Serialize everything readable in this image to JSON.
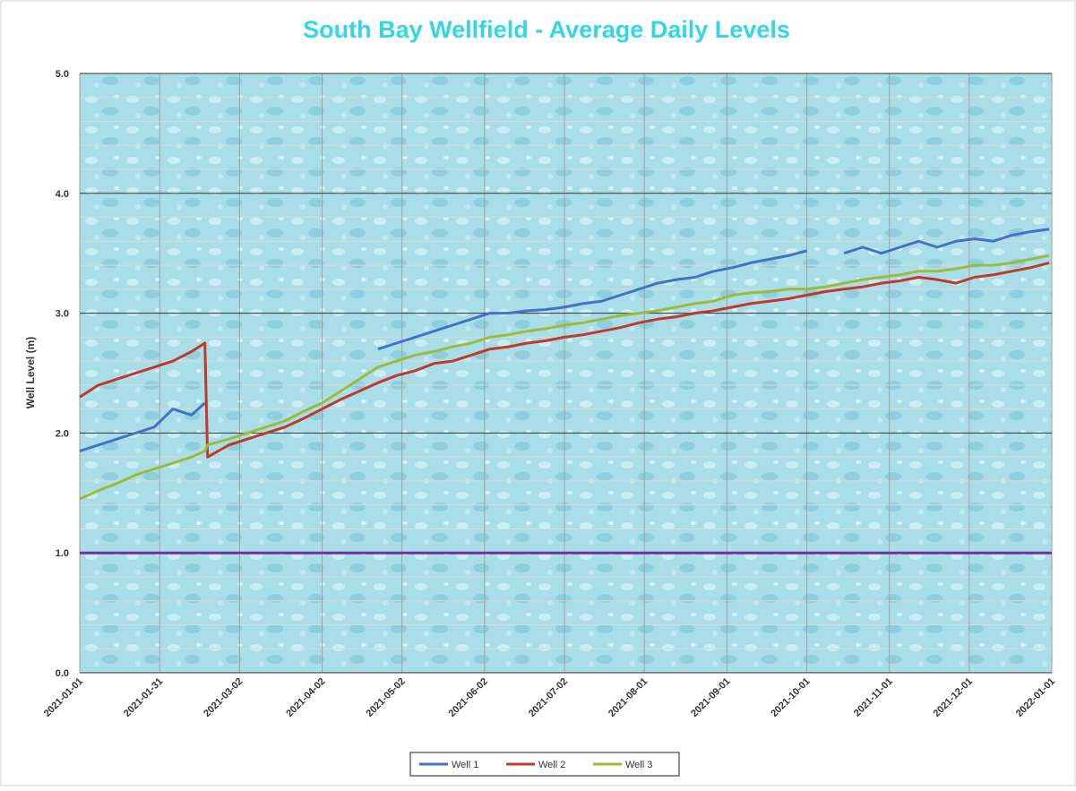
{
  "chart_data": {
    "type": "line",
    "title": "South Bay Wellfield - Average Daily Levels",
    "y_label": "Well Level (m)",
    "x": [
      "2021-01-01",
      "2021-01-08",
      "2021-01-15",
      "2021-01-22",
      "2021-01-29",
      "2021-02-05",
      "2021-02-12",
      "2021-02-17",
      "2021-02-18",
      "2021-02-26",
      "2021-03-05",
      "2021-03-12",
      "2021-03-19",
      "2021-03-26",
      "2021-04-02",
      "2021-04-09",
      "2021-04-16",
      "2021-04-23",
      "2021-04-30",
      "2021-05-07",
      "2021-05-14",
      "2021-05-21",
      "2021-05-28",
      "2021-06-04",
      "2021-06-11",
      "2021-06-18",
      "2021-06-25",
      "2021-07-02",
      "2021-07-09",
      "2021-07-16",
      "2021-07-23",
      "2021-07-30",
      "2021-08-06",
      "2021-08-13",
      "2021-08-20",
      "2021-08-27",
      "2021-09-03",
      "2021-09-10",
      "2021-09-17",
      "2021-09-24",
      "2021-10-01",
      "2021-10-08",
      "2021-10-15",
      "2021-10-22",
      "2021-10-29",
      "2021-11-05",
      "2021-11-12",
      "2021-11-19",
      "2021-11-26",
      "2021-12-03",
      "2021-12-10",
      "2021-12-17",
      "2021-12-24",
      "2021-12-31"
    ],
    "series": [
      {
        "name": "Well 1",
        "color": "#4472c4",
        "values": [
          1.85,
          1.9,
          1.95,
          2.0,
          2.05,
          2.2,
          2.15,
          2.25,
          null,
          null,
          null,
          null,
          null,
          null,
          null,
          null,
          null,
          2.7,
          2.75,
          2.8,
          2.85,
          2.9,
          2.95,
          3.0,
          3.0,
          3.02,
          3.03,
          3.05,
          3.08,
          3.1,
          3.15,
          3.2,
          3.25,
          3.28,
          3.3,
          3.35,
          3.38,
          3.42,
          3.45,
          3.48,
          3.52,
          null,
          3.5,
          3.55,
          3.5,
          3.55,
          3.6,
          3.55,
          3.6,
          3.62,
          3.6,
          3.65,
          3.68,
          3.7
        ]
      },
      {
        "name": "Well 2",
        "color": "#c0392b",
        "values": [
          2.3,
          2.4,
          2.45,
          2.5,
          2.55,
          2.6,
          2.68,
          2.75,
          1.8,
          1.9,
          1.95,
          2.0,
          2.05,
          2.12,
          2.2,
          2.28,
          2.35,
          2.42,
          2.48,
          2.52,
          2.58,
          2.6,
          2.65,
          2.7,
          2.72,
          2.75,
          2.77,
          2.8,
          2.82,
          2.85,
          2.88,
          2.92,
          2.95,
          2.97,
          3.0,
          3.02,
          3.05,
          3.08,
          3.1,
          3.12,
          3.15,
          3.18,
          3.2,
          3.22,
          3.25,
          3.27,
          3.3,
          3.28,
          3.25,
          3.3,
          3.32,
          3.35,
          3.38,
          3.42
        ]
      },
      {
        "name": "Well 3",
        "color": "#9bbb3c",
        "values": [
          1.45,
          1.52,
          1.58,
          1.65,
          1.7,
          1.75,
          1.8,
          1.85,
          1.9,
          1.95,
          2.0,
          2.05,
          2.1,
          2.18,
          2.25,
          2.35,
          2.45,
          2.55,
          2.6,
          2.65,
          2.68,
          2.72,
          2.75,
          2.8,
          2.82,
          2.85,
          2.87,
          2.9,
          2.92,
          2.95,
          2.98,
          3.0,
          3.02,
          3.05,
          3.08,
          3.1,
          3.15,
          3.17,
          3.18,
          3.2,
          3.2,
          3.22,
          3.25,
          3.28,
          3.3,
          3.32,
          3.35,
          3.35,
          3.37,
          3.4,
          3.4,
          3.42,
          3.45,
          3.48
        ]
      }
    ],
    "reference_line": {
      "value": 1,
      "color": "#7030a0"
    },
    "xlim": [
      "2021-01-01",
      "2022-01-01"
    ],
    "xticks": [
      "2021-01-01",
      "2021-01-31",
      "2021-03-02",
      "2021-04-02",
      "2021-05-02",
      "2021-06-02",
      "2021-07-02",
      "2021-08-01",
      "2021-09-01",
      "2021-10-01",
      "2021-11-01",
      "2021-12-01",
      "2022-01-01"
    ],
    "ylim": [
      0,
      5
    ],
    "yticks": [
      {
        "value": 0,
        "label": "0.0"
      },
      {
        "value": 1,
        "label": "1.0"
      },
      {
        "value": 2,
        "label": "2.0"
      },
      {
        "value": 3,
        "label": "3.0"
      },
      {
        "value": 4,
        "label": "4.0"
      },
      {
        "value": 5,
        "label": "5.0"
      }
    ],
    "minor_yticks": [
      0.2,
      0.4,
      0.6,
      0.8,
      1.2,
      1.4,
      1.6,
      1.8,
      2.2,
      2.4,
      2.6,
      2.8,
      3.2,
      3.4,
      3.6,
      3.8,
      4.2,
      4.4,
      4.6,
      4.8
    ],
    "grid": true,
    "legend": "bottom"
  }
}
